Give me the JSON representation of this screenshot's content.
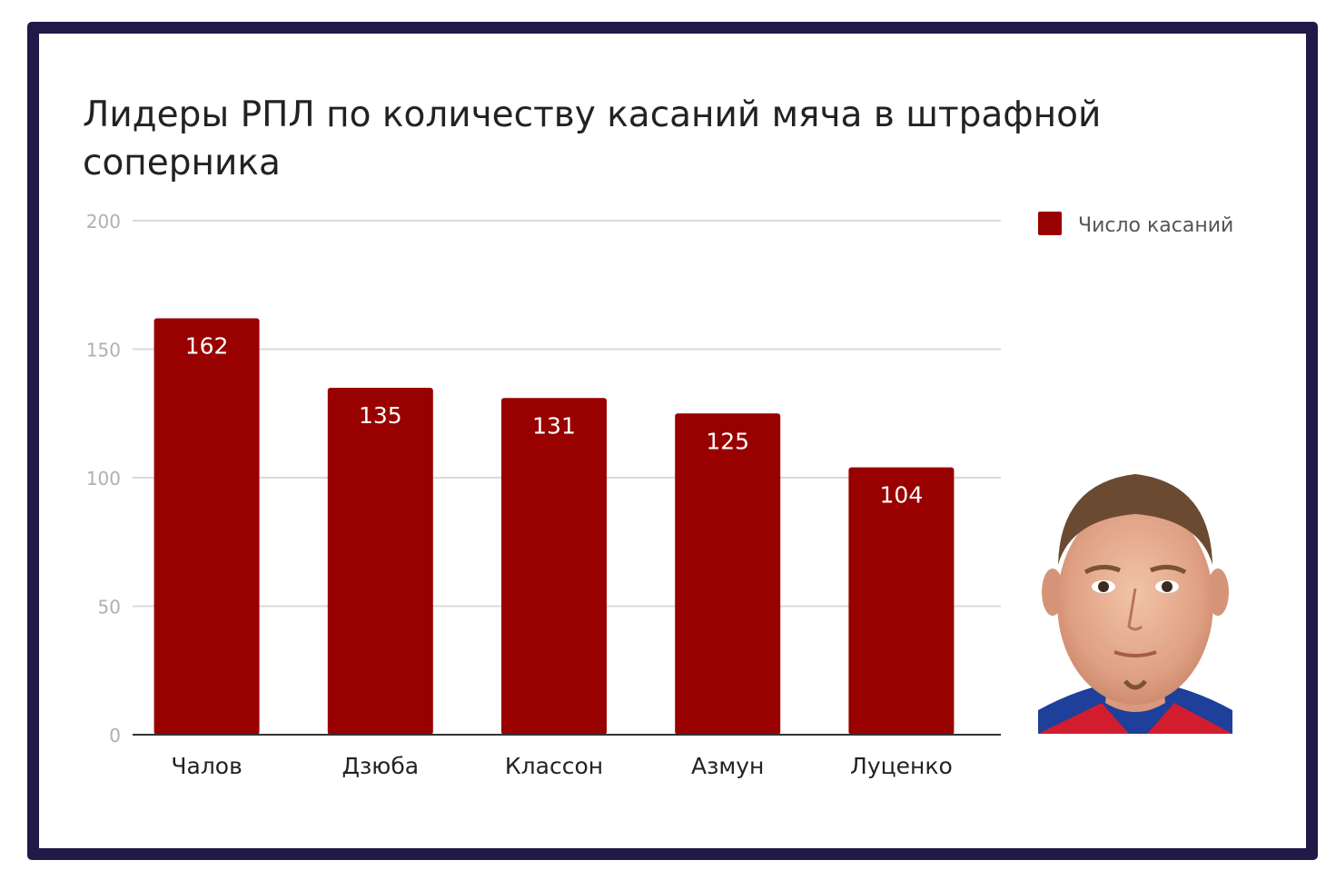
{
  "colors": {
    "bar": "#990000",
    "frame": "#1f1a47",
    "grid": "#d9d9d9",
    "axis": "#333333"
  },
  "photo": {
    "icon": "player-portrait-photo"
  },
  "chart_data": {
    "type": "bar",
    "title": "Лидеры РПЛ по количеству касаний мяча в штрафной соперника",
    "categories": [
      "Чалов",
      "Дзюба",
      "Классон",
      "Азмун",
      "Луценко"
    ],
    "series": [
      {
        "name": "Число касаний",
        "values": [
          162,
          135,
          131,
          125,
          104
        ]
      }
    ],
    "ylim": [
      0,
      200
    ],
    "yticks": [
      "0",
      "50",
      "100",
      "150",
      "200"
    ],
    "grid": true,
    "legend_position": "top-right",
    "data_labels": true
  }
}
